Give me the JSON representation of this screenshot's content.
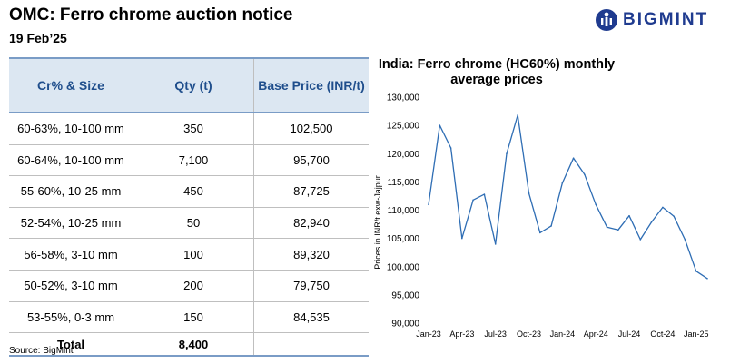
{
  "header": {
    "title": "OMC: Ferro chrome auction notice",
    "date": "19 Feb’25"
  },
  "brand": {
    "name": "BIGMINT",
    "color": "#1f3b8f"
  },
  "table": {
    "headers": [
      "Cr% & Size",
      "Qty (t)",
      "Base Price (INR/t)"
    ],
    "rows": [
      [
        "60-63%,  10-100 mm",
        "350",
        "102,500"
      ],
      [
        "60-64%,  10-100 mm",
        "7,100",
        "95,700"
      ],
      [
        "55-60%,  10-25 mm",
        "450",
        "87,725"
      ],
      [
        "52-54%,  10-25 mm",
        "50",
        "82,940"
      ],
      [
        "56-58%,  3-10 mm",
        "100",
        "89,320"
      ],
      [
        "50-52%,  3-10 mm",
        "200",
        "79,750"
      ],
      [
        "53-55%,  0-3 mm",
        "150",
        "84,535"
      ]
    ],
    "total": {
      "label": "Total",
      "qty": "8,400",
      "price": ""
    }
  },
  "source": "Source: BigMint",
  "chart_data": {
    "type": "line",
    "title": "India: Ferro chrome (HC60%) monthly average prices",
    "ylabel": "Prices in INR/t exw-Jajpur",
    "xlabel": "",
    "ylim": [
      90000,
      130000
    ],
    "yticks": [
      "90,000",
      "95,000",
      "100,000",
      "105,000",
      "110,000",
      "115,000",
      "120,000",
      "125,000",
      "130,000"
    ],
    "x": [
      "Jan-23",
      "Feb-23",
      "Mar-23",
      "Apr-23",
      "May-23",
      "Jun-23",
      "Jul-23",
      "Aug-23",
      "Sep-23",
      "Oct-23",
      "Nov-23",
      "Dec-23",
      "Jan-24",
      "Feb-24",
      "Mar-24",
      "Apr-24",
      "May-24",
      "Jun-24",
      "Jul-24",
      "Aug-24",
      "Sep-24",
      "Oct-24",
      "Nov-24",
      "Dec-24",
      "Jan-25",
      "Feb-25"
    ],
    "xtick_labels": [
      "Jan-23",
      "Apr-23",
      "Jul-23",
      "Oct-23",
      "Jan-24",
      "Apr-24",
      "Jul-24",
      "Oct-24",
      "Jan-25"
    ],
    "series": [
      {
        "values": [
          111000,
          125000,
          121000,
          105000,
          111800,
          112800,
          104000,
          120000,
          126800,
          113000,
          106000,
          107200,
          114800,
          119200,
          116300,
          111000,
          107000,
          106500,
          109000,
          104800,
          107900,
          110500,
          108900,
          104800,
          99200,
          97900
        ]
      }
    ],
    "grid": false,
    "line_color": "#2e6db4"
  }
}
